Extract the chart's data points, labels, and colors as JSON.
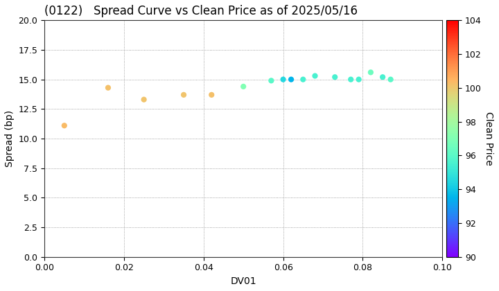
{
  "title": "(0122)   Spread Curve vs Clean Price as of 2025/05/16",
  "xlabel": "DV01",
  "ylabel": "Spread (bp)",
  "colorbar_label": "Clean Price",
  "xlim": [
    0.0,
    0.1
  ],
  "ylim": [
    0.0,
    20.0
  ],
  "xticks": [
    0.0,
    0.02,
    0.04,
    0.06,
    0.08,
    0.1
  ],
  "yticks": [
    0.0,
    2.5,
    5.0,
    7.5,
    10.0,
    12.5,
    15.0,
    17.5,
    20.0
  ],
  "cmap_min": 90,
  "cmap_max": 104,
  "cbar_ticks": [
    90,
    92,
    94,
    96,
    98,
    100,
    102,
    104
  ],
  "scatter_x": [
    0.005,
    0.016,
    0.025,
    0.035,
    0.042,
    0.05,
    0.057,
    0.06,
    0.062,
    0.065,
    0.068,
    0.073,
    0.077,
    0.079,
    0.082,
    0.085,
    0.087
  ],
  "scatter_y": [
    11.1,
    14.3,
    13.3,
    13.7,
    13.7,
    14.4,
    14.9,
    15.0,
    15.0,
    15.0,
    15.3,
    15.2,
    15.0,
    15.0,
    15.6,
    15.2,
    15.0
  ],
  "scatter_c": [
    100.3,
    100.2,
    100.1,
    100.1,
    100.2,
    97.0,
    96.0,
    94.5,
    93.5,
    95.5,
    95.5,
    95.5,
    95.5,
    95.5,
    96.5,
    95.5,
    96.0
  ],
  "marker_size": 35,
  "background_color": "#ffffff",
  "grid_color": "#888888",
  "title_fontsize": 12,
  "label_fontsize": 10,
  "tick_fontsize": 9,
  "cbar_label_fontsize": 10
}
